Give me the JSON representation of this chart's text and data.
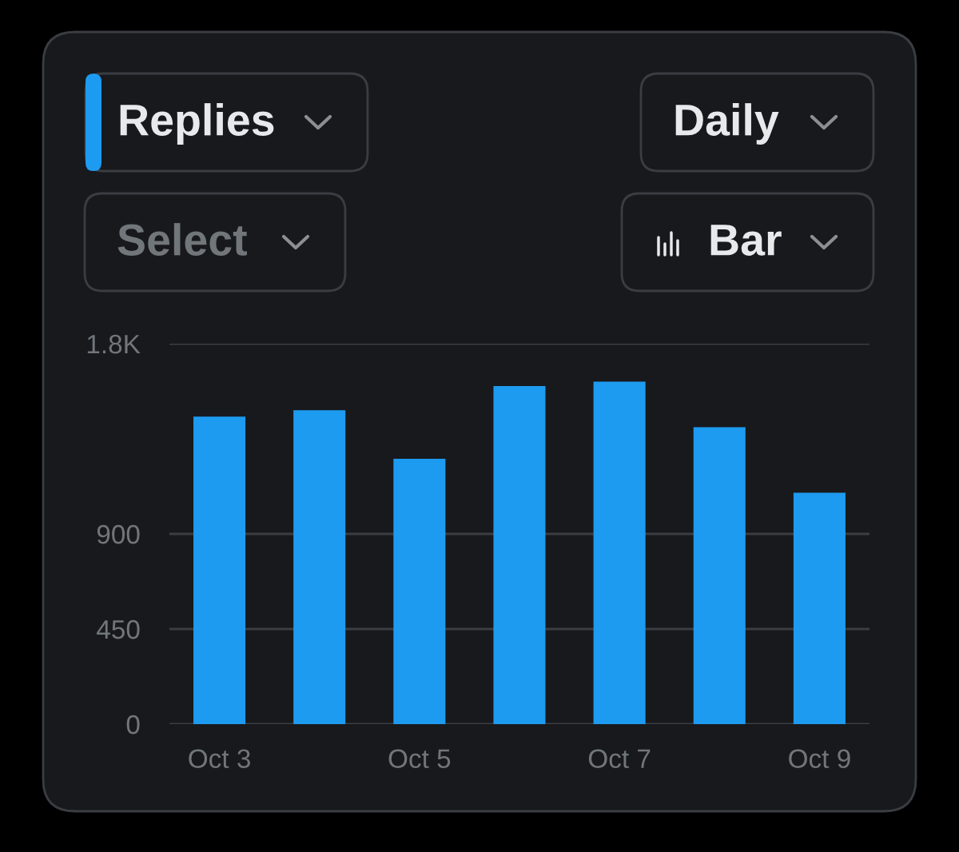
{
  "chart_data": {
    "type": "bar",
    "categories": [
      "Oct 3",
      null,
      "Oct 5",
      null,
      "Oct 7",
      null,
      "Oct 9"
    ],
    "values": [
      1455,
      1485,
      1255,
      1600,
      1620,
      1405,
      1095
    ],
    "color": "#1d9bf0",
    "ylim": [
      0,
      1800
    ],
    "yticks": [
      0,
      450,
      900,
      {
        "value": 1800,
        "label": "1.8K"
      }
    ],
    "grid": "y",
    "annotations": [
      "Replies",
      "Daily",
      "Select",
      "Bar"
    ]
  }
}
